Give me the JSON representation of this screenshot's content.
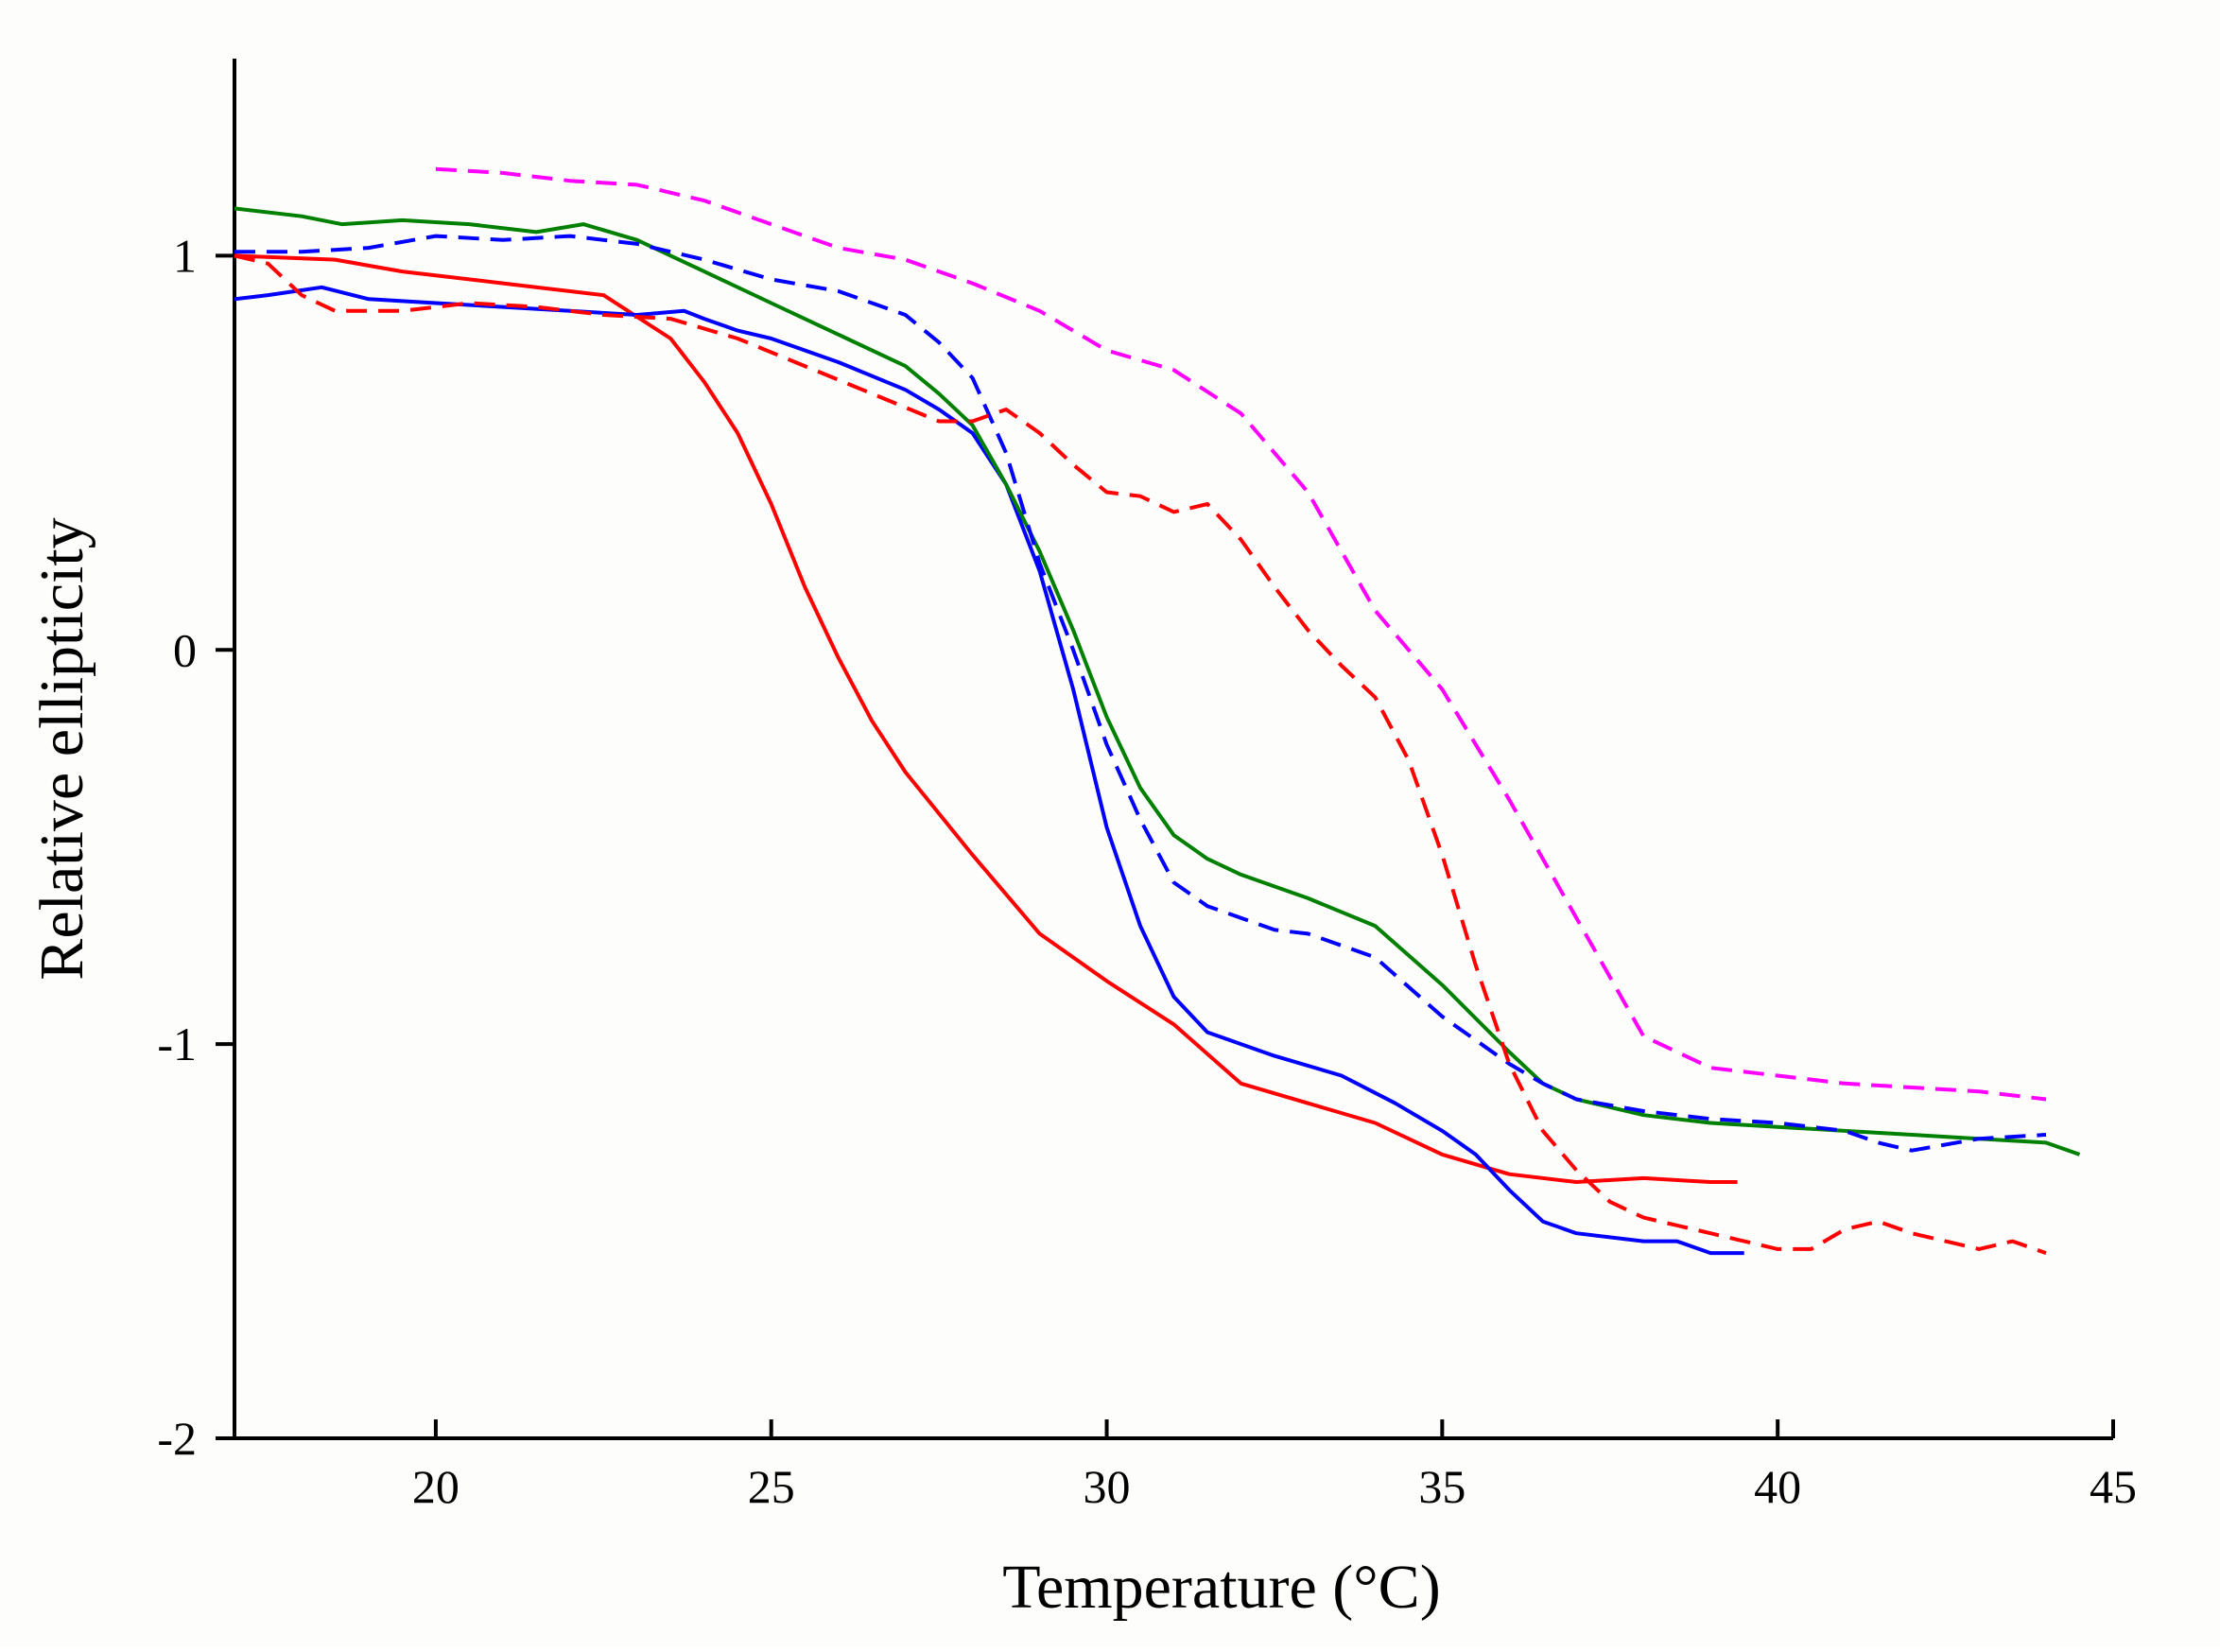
{
  "chart_data": {
    "type": "line",
    "title": "",
    "xlabel": "Temperature (°C)",
    "ylabel": "Relative ellipticity",
    "xlim": [
      17,
      45
    ],
    "ylim": [
      -2,
      1.5
    ],
    "xticks": [
      20,
      25,
      30,
      35,
      40,
      45
    ],
    "yticks": [
      -2,
      -1,
      0,
      1
    ],
    "xtick_labels": [
      "20",
      "25",
      "30",
      "35",
      "40",
      "45"
    ],
    "ytick_labels": [
      "-2",
      "-1",
      "0",
      "1"
    ],
    "grid": false,
    "legend": "none",
    "series": [
      {
        "name": "red solid",
        "color": "#ff0000",
        "style": "solid",
        "x": [
          17,
          18.5,
          19.5,
          21,
          22.5,
          23.5,
          24,
          24.5,
          25,
          25.5,
          26,
          26.5,
          27,
          28,
          29,
          30,
          31,
          32,
          33,
          34,
          35,
          36,
          37,
          38,
          39,
          39.4
        ],
        "y": [
          1.0,
          0.99,
          0.96,
          0.93,
          0.9,
          0.79,
          0.68,
          0.55,
          0.37,
          0.16,
          -0.02,
          -0.18,
          -0.31,
          -0.52,
          -0.72,
          -0.84,
          -0.95,
          -1.1,
          -1.15,
          -1.2,
          -1.28,
          -1.33,
          -1.35,
          -1.34,
          -1.35,
          -1.35
        ]
      },
      {
        "name": "blue solid",
        "color": "#0000ff",
        "style": "solid",
        "x": [
          17,
          17.5,
          18.3,
          19,
          20,
          21,
          22,
          23,
          23.7,
          24,
          24.5,
          25,
          26,
          27,
          27.5,
          28,
          28.5,
          29,
          29.5,
          30,
          30.5,
          31,
          31.5,
          32.5,
          33.5,
          34.3,
          35,
          35.5,
          36,
          36.5,
          37,
          38,
          38.5,
          39,
          39.5
        ],
        "y": [
          0.89,
          0.9,
          0.92,
          0.89,
          0.88,
          0.87,
          0.86,
          0.85,
          0.86,
          0.84,
          0.81,
          0.79,
          0.73,
          0.66,
          0.61,
          0.55,
          0.42,
          0.2,
          -0.1,
          -0.45,
          -0.7,
          -0.88,
          -0.97,
          -1.03,
          -1.08,
          -1.15,
          -1.22,
          -1.28,
          -1.37,
          -1.45,
          -1.48,
          -1.5,
          -1.5,
          -1.53,
          -1.53
        ]
      },
      {
        "name": "green solid",
        "color": "#008000",
        "style": "solid",
        "x": [
          17,
          18,
          18.6,
          19.5,
          20.5,
          21.5,
          22.2,
          23,
          24,
          25,
          26,
          27,
          27.5,
          28,
          28.5,
          29,
          29.5,
          30,
          30.5,
          31,
          31.5,
          32,
          32.5,
          33,
          34,
          35,
          36,
          36.5,
          37,
          38,
          39,
          40,
          41,
          42,
          43,
          44,
          44.5
        ],
        "y": [
          1.12,
          1.1,
          1.08,
          1.09,
          1.08,
          1.06,
          1.08,
          1.04,
          0.96,
          0.88,
          0.8,
          0.72,
          0.65,
          0.57,
          0.42,
          0.25,
          0.05,
          -0.17,
          -0.35,
          -0.47,
          -0.53,
          -0.57,
          -0.6,
          -0.63,
          -0.7,
          -0.85,
          -1.02,
          -1.1,
          -1.14,
          -1.18,
          -1.2,
          -1.21,
          -1.22,
          -1.23,
          -1.24,
          -1.25,
          -1.28
        ]
      },
      {
        "name": "blue dashed",
        "color": "#0000ff",
        "style": "dashed",
        "x": [
          17,
          18,
          19,
          20,
          21,
          22,
          23,
          24,
          25,
          26,
          27,
          27.5,
          28,
          28.5,
          29,
          29.5,
          30,
          30.5,
          31,
          31.5,
          32,
          32.5,
          33,
          34,
          35,
          36,
          36.5,
          37,
          38,
          39,
          40,
          41,
          41.5,
          42,
          43,
          44
        ],
        "y": [
          1.01,
          1.01,
          1.02,
          1.05,
          1.04,
          1.05,
          1.03,
          0.99,
          0.94,
          0.91,
          0.85,
          0.78,
          0.69,
          0.5,
          0.22,
          0.0,
          -0.24,
          -0.43,
          -0.59,
          -0.65,
          -0.68,
          -0.71,
          -0.72,
          -0.78,
          -0.93,
          -1.05,
          -1.1,
          -1.14,
          -1.17,
          -1.19,
          -1.2,
          -1.22,
          -1.25,
          -1.27,
          -1.24,
          -1.23
        ]
      },
      {
        "name": "red dashed",
        "color": "#ff0000",
        "style": "dashed",
        "x": [
          17,
          17.5,
          18,
          18.5,
          19.5,
          20.5,
          21.5,
          22.5,
          23.5,
          24.5,
          25.5,
          26.5,
          27.5,
          28,
          28.5,
          29,
          29.5,
          30,
          30.5,
          31,
          31.5,
          32,
          32.5,
          33,
          33.5,
          34,
          34.5,
          35,
          35.5,
          36,
          36.5,
          37,
          37.5,
          38,
          39,
          40,
          40.5,
          41,
          41.5,
          42,
          43,
          43.5,
          44
        ],
        "y": [
          1.0,
          0.98,
          0.9,
          0.86,
          0.86,
          0.88,
          0.87,
          0.85,
          0.84,
          0.79,
          0.72,
          0.65,
          0.58,
          0.58,
          0.61,
          0.55,
          0.47,
          0.4,
          0.39,
          0.35,
          0.37,
          0.28,
          0.16,
          0.05,
          -0.04,
          -0.12,
          -0.28,
          -0.52,
          -0.8,
          -1.05,
          -1.22,
          -1.32,
          -1.4,
          -1.44,
          -1.48,
          -1.52,
          -1.52,
          -1.47,
          -1.45,
          -1.48,
          -1.52,
          -1.5,
          -1.53
        ]
      },
      {
        "name": "magenta dashed",
        "color": "#ff00ff",
        "style": "dashed",
        "x": [
          20,
          21,
          22,
          23,
          24,
          25,
          26,
          27,
          28,
          29,
          30,
          31,
          32,
          33,
          34,
          35,
          36,
          37,
          38,
          39,
          40,
          41,
          42,
          43,
          44
        ],
        "y": [
          1.22,
          1.21,
          1.19,
          1.18,
          1.14,
          1.08,
          1.02,
          0.99,
          0.93,
          0.86,
          0.76,
          0.71,
          0.6,
          0.4,
          0.1,
          -0.1,
          -0.38,
          -0.68,
          -0.98,
          -1.06,
          -1.08,
          -1.1,
          -1.11,
          -1.12,
          -1.14
        ]
      }
    ]
  }
}
